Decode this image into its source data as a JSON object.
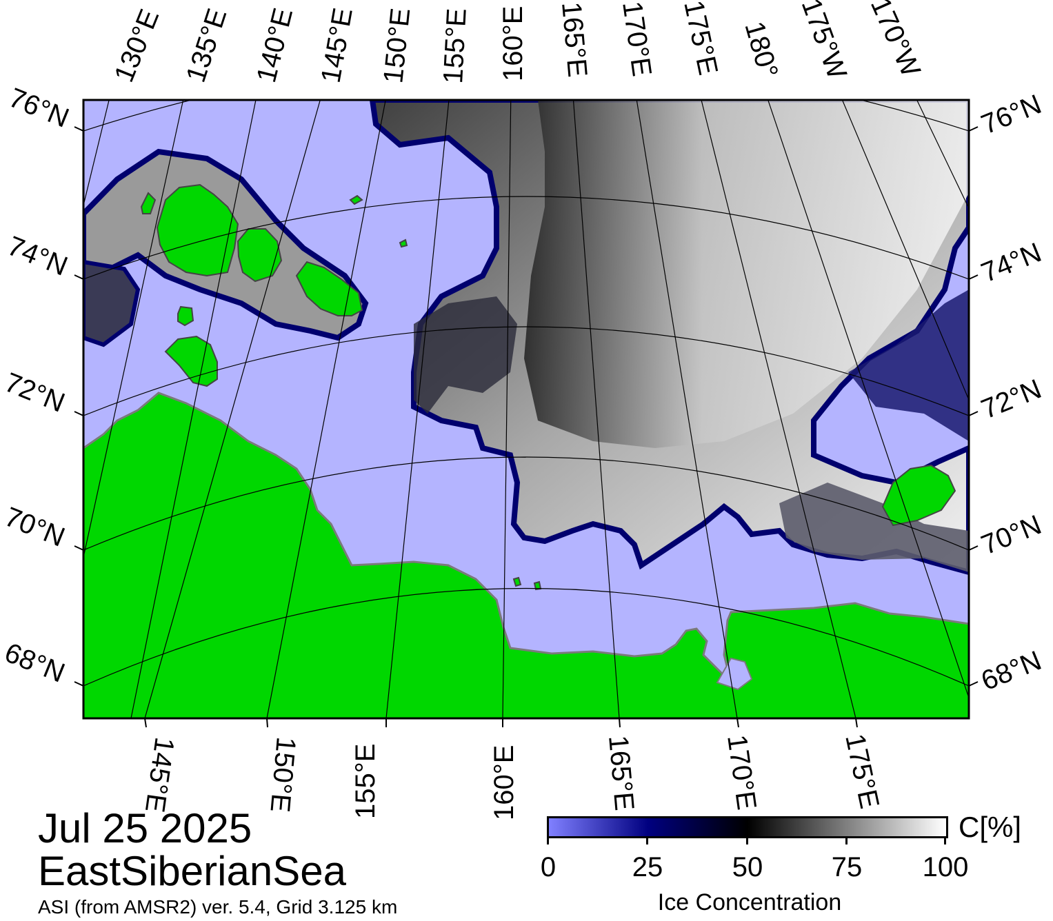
{
  "map": {
    "date": "Jul 25 2025",
    "region": "EastSiberianSea",
    "source": "ASI (from AMSR2) ver. 5.4,  Grid 3.125 km",
    "colors": {
      "water": "#b4b4ff",
      "land": "#00d700",
      "coast": "#7a7a7a",
      "graticule": "#000000"
    },
    "lat_labels": [
      "76°N",
      "74°N",
      "72°N",
      "70°N",
      "68°N"
    ],
    "top_lon_labels": [
      "130°E",
      "135°E",
      "140°E",
      "145°E",
      "150°E",
      "155°E",
      "160°E",
      "165°E",
      "170°E",
      "175°E",
      "180°",
      "175°W",
      "170°W"
    ],
    "bottom_lon_labels": [
      "145°E",
      "150°E",
      "155°E",
      "160°E",
      "165°E",
      "170°E",
      "175°E"
    ]
  },
  "colorbar": {
    "title": "Ice Concentration",
    "unit": "C[%]",
    "ticks": [
      "0",
      "25",
      "50",
      "75",
      "100"
    ],
    "stops": [
      "#8080ff",
      "#000080",
      "#000000",
      "#808080",
      "#ffffff"
    ]
  }
}
